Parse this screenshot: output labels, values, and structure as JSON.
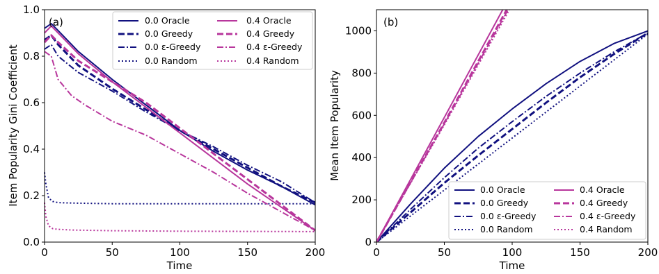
{
  "colors": {
    "rho_0_0": "#10107f",
    "rho_0_4": "#b8369c"
  },
  "legend_labels": {
    "oracle_0": "0.0 Oracle",
    "greedy_0": "0.0 Greedy",
    "egreedy_0": "0.0 ε-Greedy",
    "random_0": "0.0 Random",
    "oracle_4": "0.4 Oracle",
    "greedy_4": "0.4 Greedy",
    "egreedy_4": "0.4 ε-Greedy",
    "random_4": "0.4 Random"
  },
  "chart_data": [
    {
      "type": "line",
      "panel_label": "(a)",
      "xlabel": "Time",
      "ylabel": "Item Popularity Gini Coefficient",
      "xlim": [
        0,
        200
      ],
      "ylim": [
        0.0,
        1.0
      ],
      "xticks": [
        "0",
        "50",
        "100",
        "150",
        "200"
      ],
      "yticks": [
        "0.0",
        "0.2",
        "0.4",
        "0.6",
        "0.8",
        "1.0"
      ],
      "grid": false,
      "legend_position": "top-right",
      "series": [
        {
          "name": "0.0 Oracle",
          "style": "solid",
          "color_key": "rho_0_0",
          "x": [
            0,
            5,
            10,
            25,
            50,
            75,
            100,
            125,
            150,
            175,
            200
          ],
          "y": [
            0.92,
            0.94,
            0.91,
            0.82,
            0.7,
            0.59,
            0.48,
            0.39,
            0.31,
            0.24,
            0.16
          ]
        },
        {
          "name": "0.0 Greedy",
          "style": "dashed",
          "color_key": "rho_0_0",
          "x": [
            0,
            5,
            10,
            25,
            50,
            75,
            100,
            125,
            150,
            175,
            200
          ],
          "y": [
            0.87,
            0.89,
            0.85,
            0.76,
            0.66,
            0.57,
            0.48,
            0.4,
            0.32,
            0.24,
            0.17
          ]
        },
        {
          "name": "0.0 ε-Greedy",
          "style": "dashdot",
          "color_key": "rho_0_0",
          "x": [
            0,
            5,
            10,
            25,
            50,
            75,
            100,
            125,
            150,
            175,
            200
          ],
          "y": [
            0.83,
            0.85,
            0.8,
            0.73,
            0.65,
            0.56,
            0.48,
            0.41,
            0.33,
            0.26,
            0.17
          ]
        },
        {
          "name": "0.0 Random",
          "style": "dotted",
          "color_key": "rho_0_0",
          "x": [
            0,
            1,
            3,
            6,
            10,
            20,
            50,
            100,
            150,
            200
          ],
          "y": [
            0.3,
            0.25,
            0.19,
            0.175,
            0.17,
            0.168,
            0.165,
            0.165,
            0.165,
            0.165
          ]
        },
        {
          "name": "0.4 Oracle",
          "style": "solid",
          "color_key": "rho_0_4",
          "x": [
            0,
            5,
            10,
            25,
            50,
            75,
            100,
            125,
            150,
            175,
            200
          ],
          "y": [
            0.9,
            0.93,
            0.9,
            0.81,
            0.69,
            0.58,
            0.47,
            0.36,
            0.25,
            0.15,
            0.05
          ]
        },
        {
          "name": "0.4 Greedy",
          "style": "dashed",
          "color_key": "rho_0_4",
          "x": [
            0,
            5,
            10,
            25,
            50,
            75,
            100,
            125,
            150,
            175,
            200
          ],
          "y": [
            0.86,
            0.89,
            0.86,
            0.78,
            0.69,
            0.6,
            0.49,
            0.38,
            0.27,
            0.16,
            0.05
          ]
        },
        {
          "name": "0.4 ε-Greedy",
          "style": "dashdot",
          "color_key": "rho_0_4",
          "x": [
            0,
            5,
            10,
            20,
            30,
            50,
            75,
            100,
            125,
            150,
            175,
            200
          ],
          "y": [
            0.82,
            0.8,
            0.7,
            0.63,
            0.59,
            0.52,
            0.46,
            0.38,
            0.3,
            0.21,
            0.13,
            0.05
          ]
        },
        {
          "name": "0.4 Random",
          "style": "dotted",
          "color_key": "rho_0_4",
          "x": [
            0,
            1,
            3,
            6,
            10,
            20,
            50,
            100,
            150,
            200
          ],
          "y": [
            0.17,
            0.11,
            0.07,
            0.058,
            0.055,
            0.052,
            0.049,
            0.047,
            0.046,
            0.045
          ]
        }
      ]
    },
    {
      "type": "line",
      "panel_label": "(b)",
      "xlabel": "Time",
      "ylabel": "Mean Item Popularity",
      "xlim": [
        0,
        200
      ],
      "ylim": [
        0,
        1100
      ],
      "xticks": [
        "0",
        "50",
        "100",
        "150",
        "200"
      ],
      "yticks": [
        "0",
        "200",
        "400",
        "600",
        "800",
        "1000"
      ],
      "grid": false,
      "legend_position": "lower-right",
      "series": [
        {
          "name": "0.0 Oracle",
          "style": "solid",
          "color_key": "rho_0_0",
          "x": [
            0,
            25,
            50,
            75,
            100,
            125,
            150,
            175,
            200
          ],
          "y": [
            0,
            180,
            350,
            500,
            630,
            750,
            855,
            940,
            1000
          ]
        },
        {
          "name": "0.0 Greedy",
          "style": "dashed",
          "color_key": "rho_0_0",
          "x": [
            0,
            25,
            50,
            75,
            100,
            125,
            150,
            175,
            200
          ],
          "y": [
            0,
            140,
            280,
            410,
            535,
            660,
            780,
            890,
            990
          ]
        },
        {
          "name": "0.0 ε-Greedy",
          "style": "dashdot",
          "color_key": "rho_0_0",
          "x": [
            0,
            25,
            50,
            75,
            100,
            125,
            150,
            175,
            200
          ],
          "y": [
            0,
            155,
            305,
            445,
            570,
            690,
            800,
            900,
            990
          ]
        },
        {
          "name": "0.0 Random",
          "style": "dotted",
          "color_key": "rho_0_0",
          "x": [
            0,
            200
          ],
          "y": [
            0,
            985
          ]
        },
        {
          "name": "0.4 Oracle",
          "style": "solid",
          "color_key": "rho_0_4",
          "x": [
            0,
            50,
            93
          ],
          "y": [
            0,
            590,
            1100
          ]
        },
        {
          "name": "0.4 Greedy",
          "style": "dashed",
          "color_key": "rho_0_4",
          "x": [
            0,
            50,
            96
          ],
          "y": [
            0,
            565,
            1100
          ]
        },
        {
          "name": "0.4 ε-Greedy",
          "style": "dashdot",
          "color_key": "rho_0_4",
          "x": [
            0,
            50,
            97
          ],
          "y": [
            0,
            560,
            1100
          ]
        },
        {
          "name": "0.4 Random",
          "style": "dotted",
          "color_key": "rho_0_4",
          "x": [
            0,
            50,
            98
          ],
          "y": [
            0,
            555,
            1100
          ]
        }
      ]
    }
  ]
}
